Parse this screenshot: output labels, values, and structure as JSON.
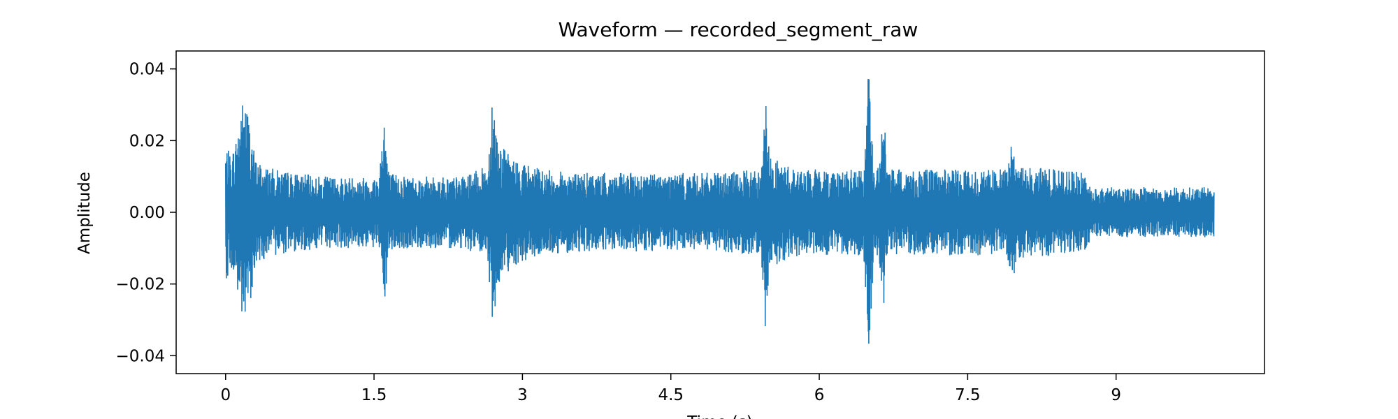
{
  "chart_data": {
    "type": "line",
    "title": "Waveform — recorded_segment_raw",
    "xlabel": "Time (s)",
    "ylabel": "Amplitude",
    "xlim": [
      -0.5,
      10.5
    ],
    "ylim": [
      -0.045,
      0.045
    ],
    "grid": false,
    "line_color": "#1f77b4",
    "x_ticks": [
      {
        "value": 0,
        "label": "0"
      },
      {
        "value": 1.5,
        "label": "1.5"
      },
      {
        "value": 3,
        "label": "3"
      },
      {
        "value": 4.5,
        "label": "4.5"
      },
      {
        "value": 6,
        "label": "6"
      },
      {
        "value": 7.5,
        "label": "7.5"
      },
      {
        "value": 9,
        "label": "9"
      }
    ],
    "y_ticks": [
      {
        "value": 0.04,
        "label": "0.04"
      },
      {
        "value": 0.02,
        "label": "0.02"
      },
      {
        "value": 0.0,
        "label": "0.00"
      },
      {
        "value": -0.02,
        "label": "−0.02"
      },
      {
        "value": -0.04,
        "label": "−0.04"
      }
    ],
    "series": [
      {
        "envelope": {
          "time": [
            0,
            0.05,
            0.1,
            0.15,
            0.2,
            0.25,
            0.3,
            0.4,
            0.5,
            0.7,
            1.0,
            1.3,
            1.55,
            1.6,
            1.65,
            2.0,
            2.4,
            2.65,
            2.7,
            2.75,
            2.9,
            3.2,
            3.6,
            4.0,
            4.5,
            5.0,
            5.4,
            5.45,
            5.5,
            5.6,
            5.8,
            6.2,
            6.45,
            6.5,
            6.55,
            6.6,
            6.65,
            6.7,
            7.0,
            7.5,
            7.9,
            7.95,
            8.0,
            8.4,
            8.7,
            8.75,
            9.0,
            9.5,
            9.99
          ],
          "amplitude": [
            0.019,
            0.016,
            0.02,
            0.03,
            0.033,
            0.025,
            0.015,
            0.013,
            0.012,
            0.011,
            0.01,
            0.01,
            0.01,
            0.031,
            0.011,
            0.01,
            0.01,
            0.013,
            0.038,
            0.02,
            0.015,
            0.012,
            0.011,
            0.011,
            0.011,
            0.011,
            0.012,
            0.035,
            0.016,
            0.014,
            0.012,
            0.012,
            0.012,
            0.041,
            0.014,
            0.013,
            0.028,
            0.012,
            0.012,
            0.012,
            0.012,
            0.021,
            0.013,
            0.012,
            0.011,
            0.007,
            0.007,
            0.007,
            0.007
          ]
        }
      }
    ]
  }
}
